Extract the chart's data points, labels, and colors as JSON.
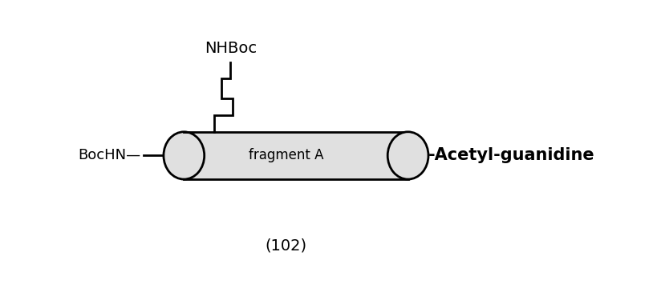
{
  "background_color": "#ffffff",
  "figure_width": 8.19,
  "figure_height": 3.85,
  "cylinder_fill": "#e0e0e0",
  "cylinder_edge": "#000000",
  "fragment_label": "fragment A",
  "fragment_fontsize": 12,
  "bochn_label": "BocHN—",
  "bochn_fontsize": 13,
  "acetyl_label": "-Acetyl-guanidine",
  "acetyl_fontsize": 15,
  "nhboc_label": "NHBoc",
  "nhboc_fontsize": 14,
  "caption_label": "(102)",
  "caption_fontsize": 14,
  "line_color": "#000000",
  "line_width": 2.0
}
